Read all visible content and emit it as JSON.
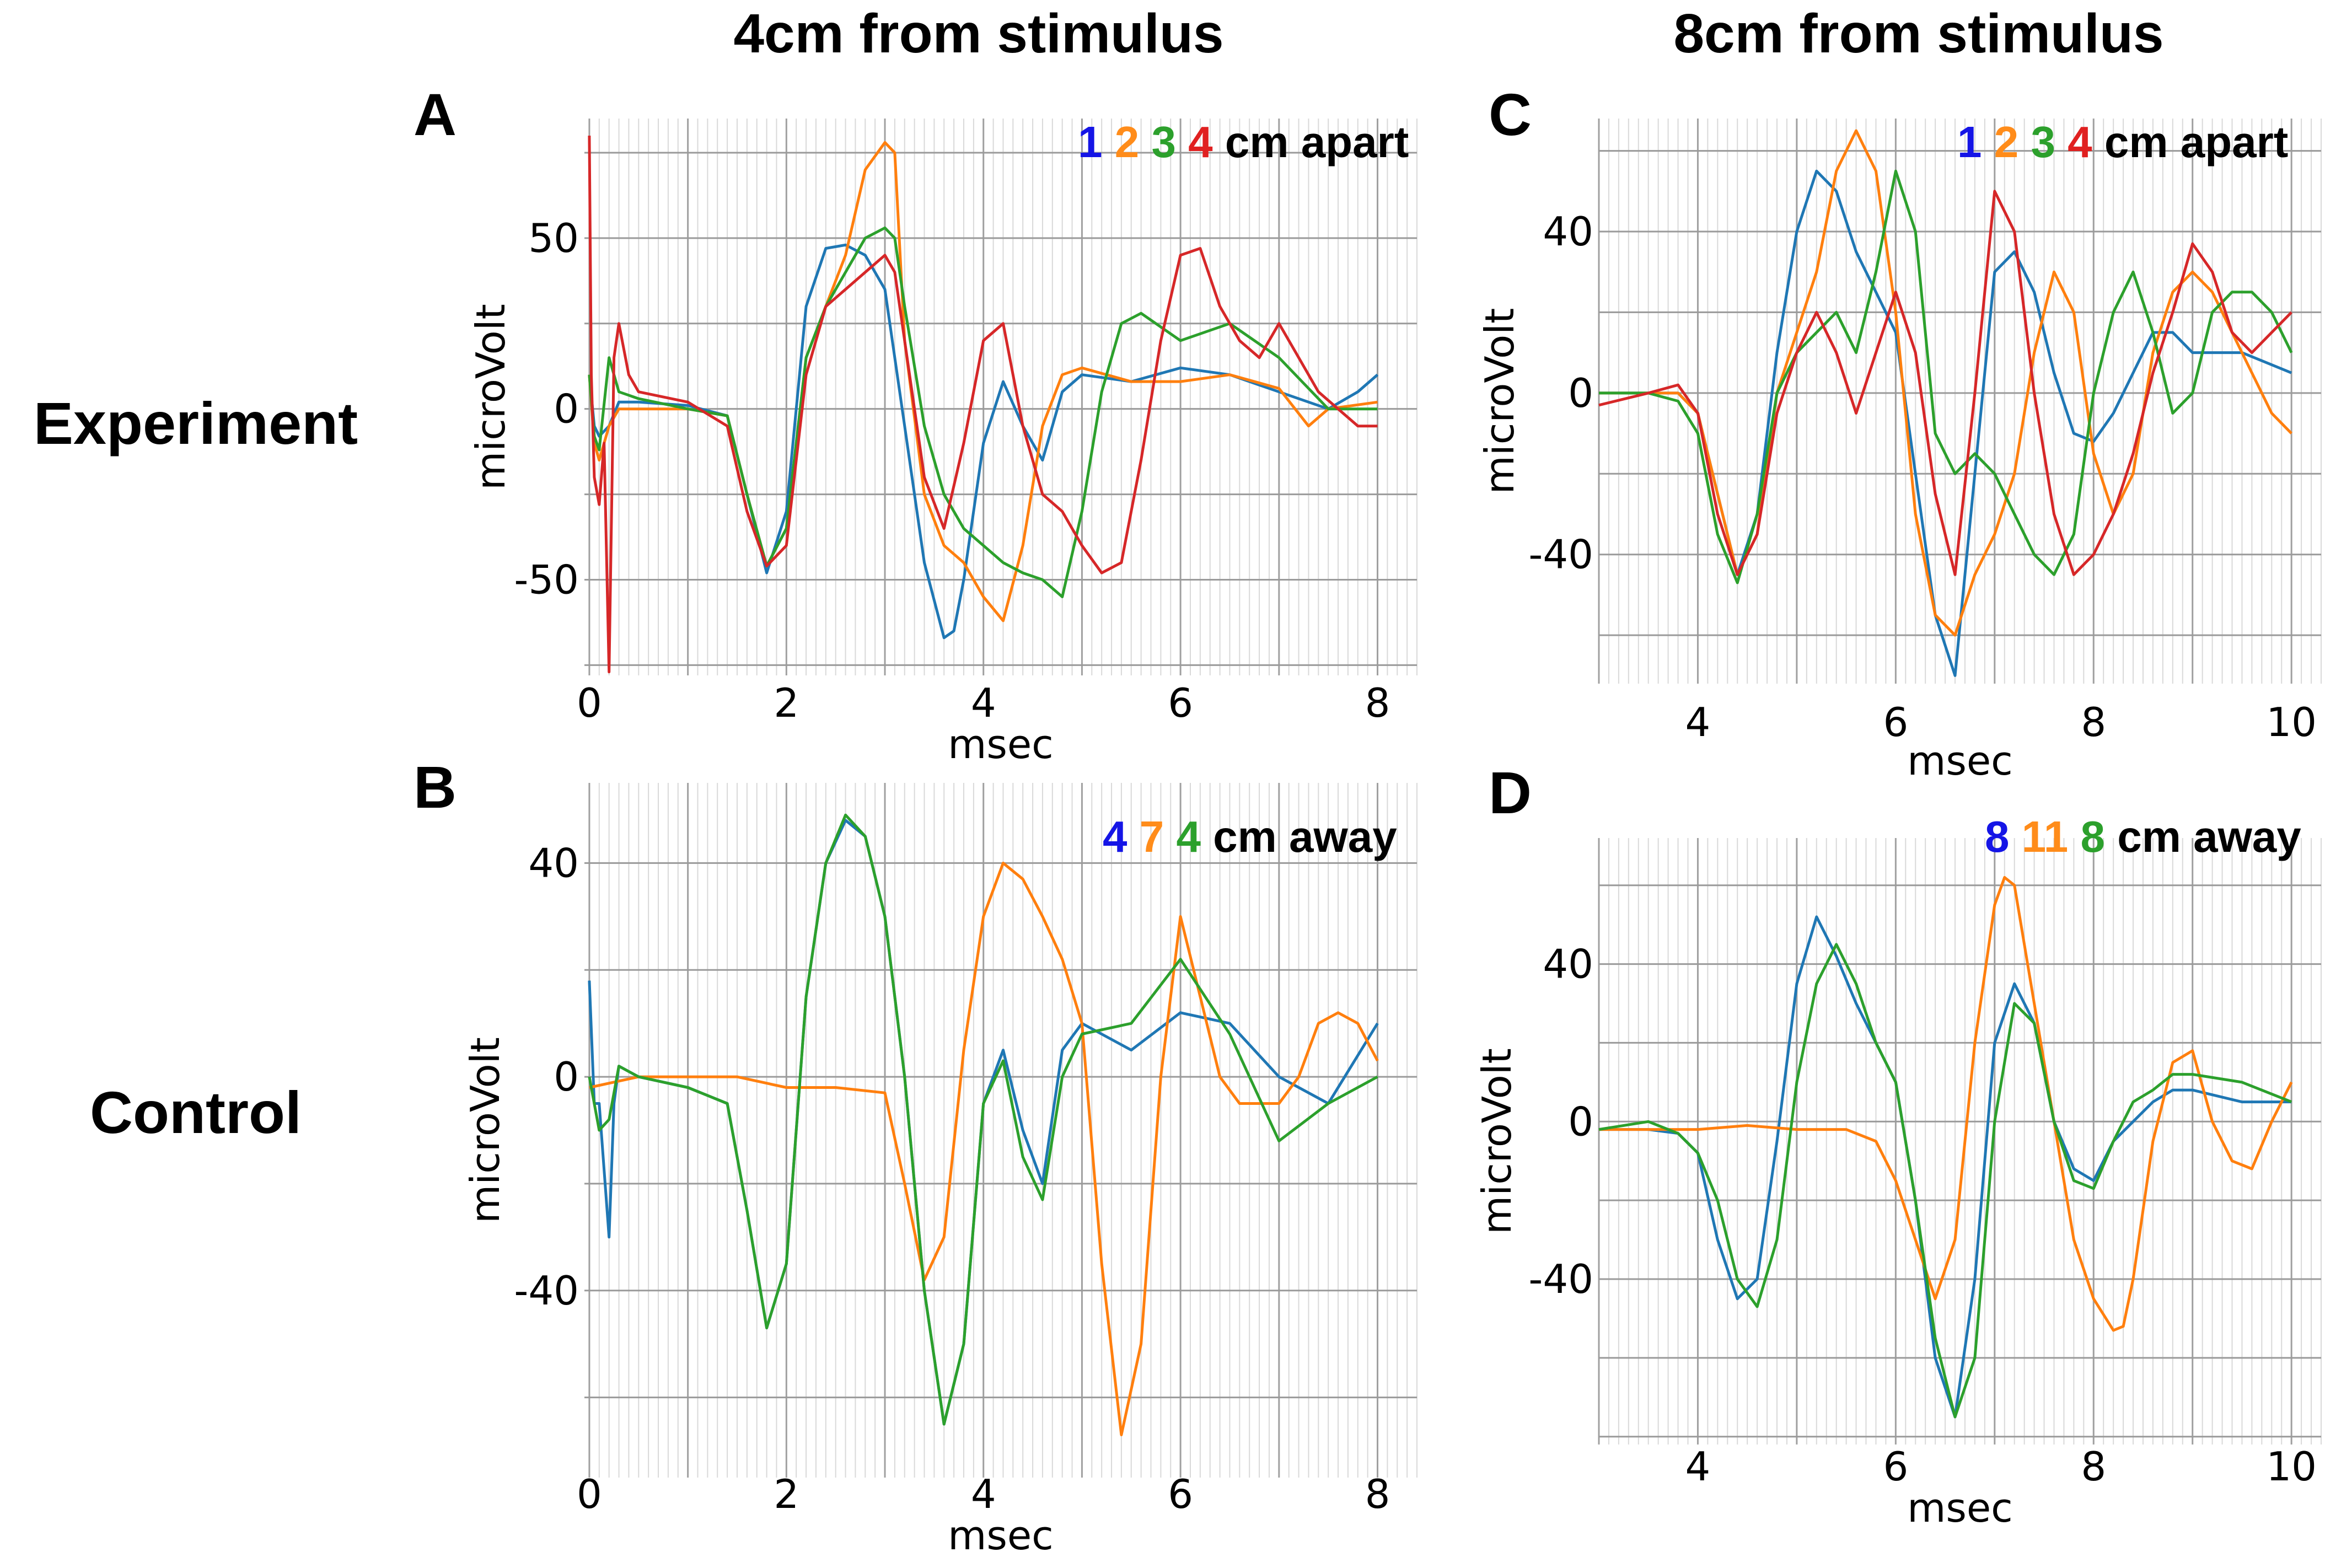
{
  "column_headings": [
    "4cm from stimulus",
    "8cm from stimulus"
  ],
  "row_labels": [
    "Experiment",
    "Control"
  ],
  "panel_letters": [
    "A",
    "B",
    "C",
    "D"
  ],
  "colors": {
    "blue": "#1f77b4",
    "orange": "#ff7f0e",
    "green": "#2ca02c",
    "red": "#d62728",
    "legend_blue": "#1515e6",
    "legend_orange": "#ff8c1a",
    "legend_green": "#2ca02c",
    "legend_red": "#e02020"
  },
  "legends": {
    "A": {
      "numbers": [
        "1",
        "2",
        "3",
        "4"
      ],
      "suffix": "cm apart"
    },
    "B": {
      "numbers": [
        "4",
        "7",
        "4"
      ],
      "suffix": "cm away"
    },
    "C": {
      "numbers": [
        "1",
        "2",
        "3",
        "4"
      ],
      "suffix": "cm apart"
    },
    "D": {
      "numbers": [
        "8",
        "11",
        "8"
      ],
      "suffix": "cm away"
    }
  },
  "chart_data": [
    {
      "panel": "A",
      "type": "line",
      "xlabel": "msec",
      "ylabel": "microVolt",
      "xlim": [
        -0.05,
        8.4
      ],
      "ylim": [
        -78,
        85
      ],
      "xticks": [
        0,
        2,
        4,
        6,
        8
      ],
      "yticks": [
        -50,
        0,
        50
      ],
      "grid": true,
      "series": [
        {
          "color": "blue",
          "x": [
            0,
            0.05,
            0.1,
            0.2,
            0.3,
            0.5,
            1.0,
            1.4,
            1.6,
            1.8,
            2.0,
            2.2,
            2.4,
            2.6,
            2.8,
            3.0,
            3.2,
            3.4,
            3.6,
            3.7,
            3.8,
            4.0,
            4.2,
            4.4,
            4.6,
            4.8,
            5.0,
            5.5,
            6.0,
            6.5,
            7.0,
            7.5,
            7.8,
            8.0
          ],
          "y": [
            10,
            -5,
            -8,
            -5,
            2,
            2,
            1,
            -2,
            -25,
            -48,
            -30,
            30,
            47,
            48,
            45,
            35,
            -5,
            -45,
            -67,
            -65,
            -50,
            -10,
            8,
            -5,
            -15,
            5,
            10,
            8,
            12,
            10,
            5,
            0,
            5,
            10
          ]
        },
        {
          "color": "orange",
          "x": [
            0,
            0.05,
            0.1,
            0.2,
            0.3,
            0.5,
            1.0,
            1.4,
            1.6,
            1.8,
            2.0,
            2.2,
            2.4,
            2.6,
            2.8,
            3.0,
            3.1,
            3.2,
            3.4,
            3.6,
            3.8,
            4.0,
            4.2,
            4.4,
            4.6,
            4.8,
            5.0,
            5.5,
            6.0,
            6.5,
            7.0,
            7.3,
            7.5,
            8.0
          ],
          "y": [
            10,
            -10,
            -15,
            -5,
            0,
            0,
            0,
            -2,
            -25,
            -46,
            -35,
            15,
            30,
            45,
            70,
            78,
            75,
            20,
            -25,
            -40,
            -45,
            -55,
            -62,
            -40,
            -5,
            10,
            12,
            8,
            8,
            10,
            6,
            -5,
            0,
            2
          ]
        },
        {
          "color": "green",
          "x": [
            0,
            0.05,
            0.1,
            0.2,
            0.3,
            0.5,
            1.0,
            1.4,
            1.6,
            1.8,
            2.0,
            2.2,
            2.4,
            2.6,
            2.8,
            3.0,
            3.1,
            3.2,
            3.4,
            3.6,
            3.8,
            4.0,
            4.2,
            4.4,
            4.6,
            4.8,
            5.0,
            5.2,
            5.4,
            5.6,
            6.0,
            6.5,
            7.0,
            7.5,
            8.0
          ],
          "y": [
            10,
            -8,
            -12,
            15,
            5,
            3,
            0,
            -2,
            -25,
            -46,
            -35,
            15,
            30,
            40,
            50,
            53,
            50,
            30,
            -5,
            -25,
            -35,
            -40,
            -45,
            -48,
            -50,
            -55,
            -30,
            5,
            25,
            28,
            20,
            25,
            15,
            0,
            0
          ]
        },
        {
          "color": "red",
          "x": [
            0,
            0.02,
            0.05,
            0.1,
            0.15,
            0.2,
            0.25,
            0.3,
            0.4,
            0.5,
            1.0,
            1.4,
            1.6,
            1.8,
            2.0,
            2.2,
            2.4,
            2.6,
            2.8,
            3.0,
            3.1,
            3.2,
            3.4,
            3.6,
            3.8,
            4.0,
            4.2,
            4.4,
            4.6,
            4.8,
            5.0,
            5.2,
            5.4,
            5.6,
            5.8,
            6.0,
            6.2,
            6.4,
            6.6,
            6.8,
            7.0,
            7.2,
            7.4,
            7.6,
            7.8,
            8.0
          ],
          "y": [
            80,
            10,
            -20,
            -28,
            -10,
            -77,
            15,
            25,
            10,
            5,
            2,
            -5,
            -30,
            -46,
            -40,
            10,
            30,
            35,
            40,
            45,
            40,
            20,
            -20,
            -35,
            -10,
            20,
            25,
            -5,
            -25,
            -30,
            -40,
            -48,
            -45,
            -15,
            20,
            45,
            47,
            30,
            20,
            15,
            25,
            15,
            5,
            0,
            -5,
            -5
          ]
        }
      ]
    },
    {
      "panel": "B",
      "type": "line",
      "xlabel": "msec",
      "ylabel": "microVolt",
      "xlim": [
        -0.05,
        8.4
      ],
      "ylim": [
        -75,
        55
      ],
      "xticks": [
        0,
        2,
        4,
        6,
        8
      ],
      "yticks": [
        -40,
        0,
        40
      ],
      "grid": true,
      "series": [
        {
          "color": "blue",
          "x": [
            0,
            0.05,
            0.1,
            0.2,
            0.25,
            0.3,
            0.5,
            1.0,
            1.4,
            1.6,
            1.8,
            2.0,
            2.2,
            2.4,
            2.6,
            2.8,
            3.0,
            3.2,
            3.4,
            3.6,
            3.8,
            4.0,
            4.2,
            4.4,
            4.6,
            4.8,
            5.0,
            5.5,
            6.0,
            6.5,
            7.0,
            7.5,
            8.0
          ],
          "y": [
            18,
            -5,
            -5,
            -30,
            -5,
            2,
            0,
            -2,
            -5,
            -25,
            -47,
            -35,
            15,
            40,
            48,
            45,
            30,
            0,
            -40,
            -65,
            -50,
            -5,
            5,
            -10,
            -20,
            5,
            10,
            5,
            12,
            10,
            0,
            -5,
            10
          ]
        },
        {
          "color": "orange",
          "x": [
            0,
            0.5,
            1.0,
            1.5,
            2.0,
            2.5,
            3.0,
            3.2,
            3.4,
            3.6,
            3.8,
            4.0,
            4.2,
            4.4,
            4.6,
            4.8,
            5.0,
            5.2,
            5.4,
            5.6,
            5.8,
            6.0,
            6.2,
            6.4,
            6.6,
            6.8,
            7.0,
            7.2,
            7.4,
            7.6,
            7.8,
            8.0
          ],
          "y": [
            -2,
            0,
            0,
            0,
            -2,
            -2,
            -3,
            -20,
            -38,
            -30,
            5,
            30,
            40,
            37,
            30,
            22,
            10,
            -35,
            -67,
            -50,
            0,
            30,
            15,
            0,
            -5,
            -5,
            -5,
            0,
            10,
            12,
            10,
            3
          ]
        },
        {
          "color": "green",
          "x": [
            0,
            0.1,
            0.2,
            0.3,
            0.5,
            1.0,
            1.4,
            1.6,
            1.8,
            2.0,
            2.2,
            2.4,
            2.6,
            2.8,
            3.0,
            3.2,
            3.4,
            3.6,
            3.8,
            4.0,
            4.2,
            4.4,
            4.6,
            4.8,
            5.0,
            5.5,
            6.0,
            6.5,
            7.0,
            7.5,
            8.0
          ],
          "y": [
            0,
            -10,
            -8,
            2,
            0,
            -2,
            -5,
            -25,
            -47,
            -35,
            15,
            40,
            49,
            45,
            30,
            0,
            -40,
            -65,
            -50,
            -5,
            3,
            -15,
            -23,
            0,
            8,
            10,
            22,
            8,
            -12,
            -5,
            0
          ]
        }
      ]
    },
    {
      "panel": "C",
      "type": "line",
      "xlabel": "msec",
      "ylabel": "microVolt",
      "xlim": [
        3.0,
        10.3
      ],
      "ylim": [
        -72,
        68
      ],
      "xticks": [
        4,
        6,
        8,
        10
      ],
      "yticks": [
        -40,
        0,
        40
      ],
      "grid": true,
      "series": [
        {
          "color": "blue",
          "x": [
            3.0,
            3.5,
            3.8,
            4.0,
            4.2,
            4.4,
            4.6,
            4.8,
            5.0,
            5.2,
            5.4,
            5.6,
            5.8,
            6.0,
            6.2,
            6.4,
            6.6,
            6.8,
            7.0,
            7.2,
            7.4,
            7.6,
            7.8,
            8.0,
            8.2,
            8.4,
            8.6,
            8.8,
            9.0,
            9.5,
            10.0
          ],
          "y": [
            0,
            0,
            0,
            -5,
            -25,
            -45,
            -30,
            10,
            40,
            55,
            50,
            35,
            25,
            15,
            -20,
            -55,
            -70,
            -20,
            30,
            35,
            25,
            5,
            -10,
            -12,
            -5,
            5,
            15,
            15,
            10,
            10,
            5
          ]
        },
        {
          "color": "orange",
          "x": [
            3.0,
            3.5,
            3.8,
            4.0,
            4.2,
            4.4,
            4.6,
            4.8,
            5.0,
            5.2,
            5.4,
            5.6,
            5.8,
            6.0,
            6.2,
            6.4,
            6.6,
            6.8,
            7.0,
            7.2,
            7.4,
            7.6,
            7.8,
            8.0,
            8.2,
            8.4,
            8.6,
            8.8,
            9.0,
            9.2,
            9.4,
            9.6,
            9.8,
            10.0
          ],
          "y": [
            0,
            0,
            0,
            -5,
            -25,
            -45,
            -35,
            0,
            15,
            30,
            55,
            65,
            55,
            20,
            -30,
            -55,
            -60,
            -45,
            -35,
            -20,
            10,
            30,
            20,
            -15,
            -30,
            -20,
            10,
            25,
            30,
            25,
            15,
            5,
            -5,
            -10
          ]
        },
        {
          "color": "green",
          "x": [
            3.0,
            3.5,
            3.8,
            4.0,
            4.2,
            4.4,
            4.6,
            4.8,
            5.0,
            5.2,
            5.4,
            5.6,
            5.8,
            6.0,
            6.2,
            6.4,
            6.6,
            6.8,
            7.0,
            7.2,
            7.4,
            7.6,
            7.8,
            8.0,
            8.2,
            8.4,
            8.6,
            8.8,
            9.0,
            9.2,
            9.4,
            9.6,
            9.8,
            10.0
          ],
          "y": [
            0,
            0,
            -2,
            -10,
            -35,
            -47,
            -30,
            0,
            10,
            15,
            20,
            10,
            30,
            55,
            40,
            -10,
            -20,
            -15,
            -20,
            -30,
            -40,
            -45,
            -35,
            0,
            20,
            30,
            15,
            -5,
            0,
            20,
            25,
            25,
            20,
            10
          ]
        },
        {
          "color": "red",
          "x": [
            3.0,
            3.5,
            3.8,
            4.0,
            4.2,
            4.4,
            4.6,
            4.8,
            5.0,
            5.2,
            5.4,
            5.6,
            5.8,
            6.0,
            6.2,
            6.4,
            6.6,
            6.8,
            7.0,
            7.2,
            7.4,
            7.6,
            7.8,
            8.0,
            8.2,
            8.4,
            8.6,
            8.8,
            9.0,
            9.2,
            9.4,
            9.6,
            9.8,
            10.0
          ],
          "y": [
            -3,
            0,
            2,
            -5,
            -30,
            -45,
            -35,
            -5,
            10,
            20,
            10,
            -5,
            10,
            25,
            10,
            -25,
            -45,
            0,
            50,
            40,
            0,
            -30,
            -45,
            -40,
            -30,
            -15,
            5,
            20,
            37,
            30,
            15,
            10,
            15,
            20
          ]
        }
      ]
    },
    {
      "panel": "D",
      "type": "line",
      "xlabel": "msec",
      "ylabel": "microVolt",
      "xlim": [
        3.0,
        10.3
      ],
      "ylim": [
        -82,
        72
      ],
      "xticks": [
        4,
        6,
        8,
        10
      ],
      "yticks": [
        -40,
        0,
        40
      ],
      "grid": true,
      "series": [
        {
          "color": "blue",
          "x": [
            3.0,
            3.5,
            3.8,
            4.0,
            4.2,
            4.4,
            4.6,
            4.8,
            5.0,
            5.2,
            5.4,
            5.6,
            5.8,
            6.0,
            6.2,
            6.4,
            6.6,
            6.8,
            7.0,
            7.2,
            7.4,
            7.6,
            7.8,
            8.0,
            8.2,
            8.4,
            8.6,
            8.8,
            9.0,
            9.5,
            10.0
          ],
          "y": [
            -2,
            -2,
            -3,
            -8,
            -30,
            -45,
            -40,
            -5,
            35,
            52,
            42,
            30,
            20,
            10,
            -20,
            -60,
            -75,
            -40,
            20,
            35,
            25,
            0,
            -12,
            -15,
            -5,
            0,
            5,
            8,
            8,
            5,
            5
          ]
        },
        {
          "color": "orange",
          "x": [
            3.0,
            3.5,
            4.0,
            4.5,
            5.0,
            5.5,
            5.8,
            6.0,
            6.2,
            6.4,
            6.6,
            6.8,
            7.0,
            7.1,
            7.2,
            7.4,
            7.6,
            7.8,
            8.0,
            8.2,
            8.3,
            8.4,
            8.6,
            8.8,
            9.0,
            9.2,
            9.4,
            9.6,
            9.8,
            10.0
          ],
          "y": [
            -2,
            -2,
            -2,
            -1,
            -2,
            -2,
            -5,
            -15,
            -30,
            -45,
            -30,
            20,
            55,
            62,
            60,
            30,
            0,
            -30,
            -45,
            -53,
            -52,
            -40,
            -5,
            15,
            18,
            0,
            -10,
            -12,
            0,
            10
          ]
        },
        {
          "color": "green",
          "x": [
            3.0,
            3.5,
            3.8,
            4.0,
            4.2,
            4.4,
            4.6,
            4.8,
            5.0,
            5.2,
            5.4,
            5.6,
            5.8,
            6.0,
            6.2,
            6.4,
            6.6,
            6.8,
            7.0,
            7.2,
            7.4,
            7.6,
            7.8,
            8.0,
            8.2,
            8.4,
            8.6,
            8.8,
            9.0,
            9.5,
            10.0
          ],
          "y": [
            -2,
            0,
            -3,
            -8,
            -20,
            -40,
            -47,
            -30,
            10,
            35,
            45,
            35,
            20,
            10,
            -20,
            -55,
            -75,
            -60,
            0,
            30,
            25,
            0,
            -15,
            -17,
            -5,
            5,
            8,
            12,
            12,
            10,
            5
          ]
        }
      ]
    }
  ]
}
